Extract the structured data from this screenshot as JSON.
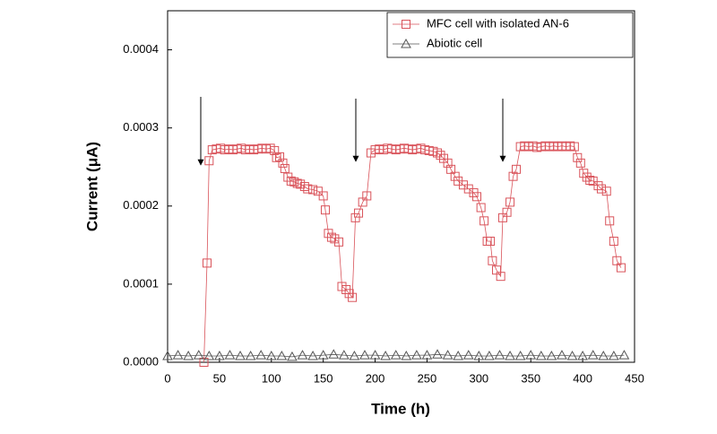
{
  "chart_data": {
    "type": "scatter-line",
    "xlabel": "Time (h)",
    "ylabel": "Current (μA)",
    "xlim": [
      0,
      450
    ],
    "xticks": [
      0,
      50,
      100,
      150,
      200,
      250,
      300,
      350,
      400,
      450
    ],
    "ylim": [
      0,
      0.00045
    ],
    "yticks": [
      {
        "value": 0,
        "label": "0.0000"
      },
      {
        "value": 0.0001,
        "label": "0.0001"
      },
      {
        "value": 0.0002,
        "label": "0.0002"
      },
      {
        "value": 0.0003,
        "label": "0.0003"
      },
      {
        "value": 0.0004,
        "label": "0.0004"
      }
    ],
    "legend": "upper right",
    "series": [
      {
        "name": "MFC cell with isolated AN-6",
        "color": "#d9535a",
        "marker": "square",
        "x": [
          35,
          38,
          40,
          43,
          47,
          51,
          55,
          59,
          63,
          67,
          71,
          75,
          79,
          83,
          87,
          91,
          95,
          99,
          103,
          105,
          108,
          111,
          113,
          116,
          119,
          122,
          125,
          128,
          132,
          135,
          140,
          145,
          150,
          152,
          155,
          158,
          161,
          165,
          168,
          172,
          175,
          178,
          181,
          184,
          188,
          192,
          196,
          200,
          204,
          208,
          212,
          216,
          220,
          224,
          228,
          232,
          236,
          240,
          244,
          248,
          252,
          256,
          260,
          263,
          266,
          270,
          273,
          277,
          280,
          285,
          290,
          295,
          298,
          302,
          305,
          308,
          311,
          313,
          317,
          321,
          323,
          327,
          330,
          333,
          336,
          340,
          344,
          348,
          352,
          356,
          360,
          364,
          368,
          372,
          376,
          380,
          384,
          388,
          392,
          395,
          398,
          401,
          404,
          407,
          410,
          415,
          418,
          423,
          426,
          430,
          433,
          437
        ],
        "values": [
          0,
          0.000127,
          0.000258,
          0.000272,
          0.000273,
          0.000274,
          0.000272,
          0.000273,
          0.000272,
          0.000273,
          0.000274,
          0.000272,
          0.000273,
          0.000272,
          0.000273,
          0.000274,
          0.000273,
          0.000274,
          0.000271,
          0.000262,
          0.000263,
          0.000255,
          0.000248,
          0.000237,
          0.000232,
          0.000231,
          0.000229,
          0.000228,
          0.000225,
          0.000222,
          0.000221,
          0.000219,
          0.000213,
          0.000195,
          0.000165,
          0.00016,
          0.000158,
          0.000154,
          9.7e-05,
          9.3e-05,
          8.8e-05,
          8.3e-05,
          0.000185,
          0.000191,
          0.000205,
          0.000213,
          0.000268,
          0.000272,
          0.000273,
          0.000272,
          0.000274,
          0.000273,
          0.000272,
          0.000273,
          0.000274,
          0.000273,
          0.000272,
          0.000273,
          0.000274,
          0.000272,
          0.000271,
          0.00027,
          0.000268,
          0.000265,
          0.000261,
          0.000255,
          0.000247,
          0.000238,
          0.000232,
          0.000227,
          0.000222,
          0.000217,
          0.000212,
          0.000198,
          0.000181,
          0.000155,
          0.000155,
          0.00013,
          0.000118,
          0.00011,
          0.000185,
          0.000192,
          0.000205,
          0.000238,
          0.000247,
          0.000276,
          0.000277,
          0.000276,
          0.000277,
          0.000275,
          0.000276,
          0.000277,
          0.000276,
          0.000277,
          0.000276,
          0.000277,
          0.000276,
          0.000277,
          0.000276,
          0.000262,
          0.000255,
          0.000242,
          0.000237,
          0.000233,
          0.000232,
          0.000226,
          0.000222,
          0.000219,
          0.000181,
          0.000155,
          0.00013,
          0.000121
        ]
      },
      {
        "name": "Abiotic cell",
        "color": "#555555",
        "marker": "triangle",
        "x": [
          0,
          10,
          20,
          30,
          40,
          50,
          60,
          70,
          80,
          90,
          100,
          110,
          120,
          130,
          140,
          150,
          160,
          170,
          180,
          190,
          200,
          210,
          220,
          230,
          240,
          250,
          260,
          270,
          280,
          290,
          300,
          310,
          320,
          330,
          340,
          350,
          360,
          370,
          380,
          390,
          400,
          410,
          420,
          430,
          440
        ],
        "values": [
          8e-06,
          9e-06,
          8e-06,
          9e-06,
          8e-06,
          8e-06,
          9e-06,
          8e-06,
          8e-06,
          9e-06,
          8e-06,
          8e-06,
          7e-06,
          9e-06,
          8e-06,
          9e-06,
          1e-05,
          9e-06,
          8e-06,
          9e-06,
          9e-06,
          8e-06,
          9e-06,
          8e-06,
          9e-06,
          9e-06,
          1e-05,
          9e-06,
          8e-06,
          9e-06,
          8e-06,
          8e-06,
          9e-06,
          8e-06,
          8e-06,
          9e-06,
          8e-06,
          8e-06,
          9e-06,
          8e-06,
          8e-06,
          9e-06,
          8e-06,
          8e-06,
          9e-06
        ]
      }
    ]
  }
}
